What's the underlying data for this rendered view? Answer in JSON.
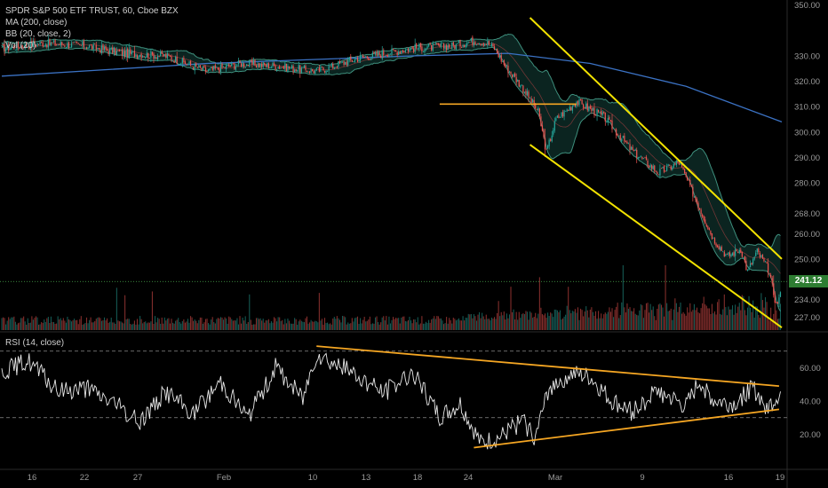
{
  "chart_data": {
    "type": "candlestick",
    "symbol_line": "SPDR S&P 500 ETF TRUST, 60, Cboe BZX",
    "indicators": [
      "MA (200, close)",
      "BB (20, close, 2)",
      "Vol (20)"
    ],
    "rsi_label": "RSI (14, close)",
    "last_price": "241.12",
    "last_price_value": 241.12,
    "price_axis": {
      "ticks": [
        "350.00",
        "330.00",
        "320.00",
        "310.00",
        "300.00",
        "290.00",
        "280.00",
        "268.00",
        "260.00",
        "250.00",
        "234.00",
        "227.00"
      ],
      "range": [
        222,
        352
      ]
    },
    "rsi_axis": {
      "ticks": [
        "60.00",
        "40.00",
        "20.00"
      ],
      "range": [
        0,
        80
      ],
      "bands": [
        70,
        30
      ]
    },
    "x_axis": {
      "labels": [
        "16",
        "22",
        "27",
        "Feb",
        "10",
        "13",
        "18",
        "24",
        "Mar",
        "9",
        "16",
        "19"
      ],
      "bar_count": 570
    },
    "price_anchors": [
      [
        0,
        333
      ],
      [
        30,
        335
      ],
      [
        60,
        334
      ],
      [
        90,
        331
      ],
      [
        120,
        330
      ],
      [
        150,
        324
      ],
      [
        175,
        327
      ],
      [
        200,
        326
      ],
      [
        230,
        324
      ],
      [
        260,
        329
      ],
      [
        300,
        333
      ],
      [
        330,
        334
      ],
      [
        345,
        336
      ],
      [
        355,
        335
      ],
      [
        360,
        333
      ],
      [
        368,
        326
      ],
      [
        380,
        318
      ],
      [
        392,
        308
      ],
      [
        398,
        292
      ],
      [
        405,
        305
      ],
      [
        420,
        312
      ],
      [
        430,
        309
      ],
      [
        440,
        306
      ],
      [
        460,
        293
      ],
      [
        480,
        284
      ],
      [
        495,
        288
      ],
      [
        505,
        276
      ],
      [
        520,
        258
      ],
      [
        530,
        251
      ],
      [
        540,
        254
      ],
      [
        545,
        245
      ],
      [
        552,
        253
      ],
      [
        560,
        246
      ],
      [
        566,
        232
      ],
      [
        570,
        237
      ]
    ],
    "ma200_anchors": [
      [
        0,
        322
      ],
      [
        150,
        327
      ],
      [
        300,
        330
      ],
      [
        370,
        331
      ],
      [
        430,
        327
      ],
      [
        500,
        318
      ],
      [
        570,
        304
      ]
    ],
    "rsi_anchors": [
      [
        0,
        58
      ],
      [
        20,
        64
      ],
      [
        40,
        46
      ],
      [
        60,
        48
      ],
      [
        80,
        40
      ],
      [
        100,
        27
      ],
      [
        120,
        46
      ],
      [
        140,
        32
      ],
      [
        160,
        52
      ],
      [
        180,
        30
      ],
      [
        200,
        60
      ],
      [
        220,
        42
      ],
      [
        230,
        69
      ],
      [
        260,
        55
      ],
      [
        280,
        45
      ],
      [
        300,
        58
      ],
      [
        320,
        30
      ],
      [
        335,
        38
      ],
      [
        350,
        14
      ],
      [
        365,
        18
      ],
      [
        380,
        28
      ],
      [
        390,
        18
      ],
      [
        400,
        48
      ],
      [
        415,
        56
      ],
      [
        430,
        54
      ],
      [
        445,
        40
      ],
      [
        460,
        34
      ],
      [
        480,
        46
      ],
      [
        500,
        36
      ],
      [
        510,
        52
      ],
      [
        520,
        40
      ],
      [
        535,
        38
      ],
      [
        548,
        48
      ],
      [
        560,
        36
      ],
      [
        570,
        46
      ]
    ],
    "channel_lines": [
      {
        "color": "#f2e200",
        "from": [
          386,
          345
        ],
        "to": [
          570,
          250
        ]
      },
      {
        "color": "#f2e200",
        "from": [
          386,
          295
        ],
        "to": [
          570,
          223
        ]
      }
    ],
    "horizontal_lines": [
      {
        "color": "#f5a623",
        "x0": 320,
        "x1": 420,
        "price": 311
      }
    ],
    "rsi_trendlines": [
      {
        "color": "#f5a623",
        "from": [
          230,
          73
        ],
        "to": [
          568,
          49
        ]
      },
      {
        "color": "#f5a623",
        "from": [
          345,
          12
        ],
        "to": [
          568,
          35
        ]
      }
    ],
    "colors": {
      "up": "#26a69a",
      "down": "#ef5350",
      "ma200": "#3b72c4",
      "bb": "#3e8f7d",
      "bb_fill": "#0d2a26",
      "axis_text": "#9a9a9a",
      "last_price_bg": "#2e7d32",
      "rsi_line": "#e8e8e8",
      "rsi_band_bg": "#0b0b0b"
    },
    "grid": false
  }
}
